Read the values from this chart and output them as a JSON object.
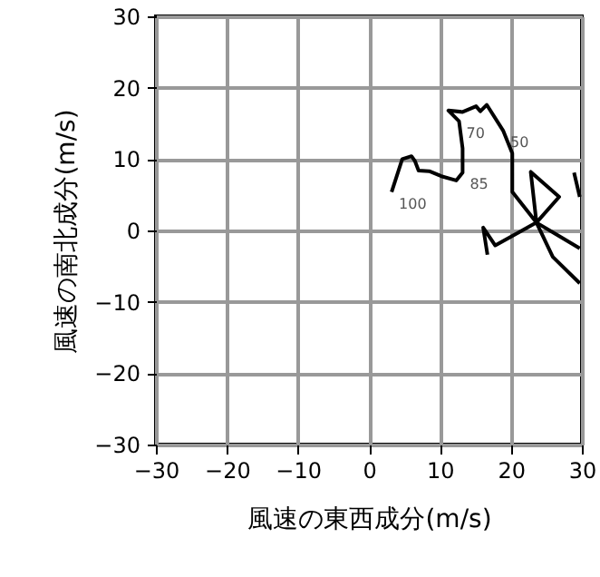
{
  "chart_data": {
    "type": "line",
    "xlabel": "風速の東西成分(m/s)",
    "ylabel": "風速の南北成分(m/s)",
    "xlim": [
      -30,
      30
    ],
    "ylim": [
      -30,
      30
    ],
    "xticks": [
      -30,
      -20,
      -10,
      0,
      10,
      20,
      30
    ],
    "yticks": [
      -30,
      -20,
      -10,
      0,
      10,
      20,
      30
    ],
    "grid": true,
    "marker": "none",
    "line_style": "solid",
    "series": [
      {
        "color": "#000000",
        "x": [
          3.2,
          4.7,
          6.0,
          6.5,
          7.0,
          8.5,
          10.2,
          12.3,
          13.2,
          13.2,
          12.7,
          11.2,
          13.2,
          15.1,
          15.7,
          16.6,
          18.9,
          20.2,
          20.2,
          23.6,
          26.8,
          22.8,
          23.6,
          25.9,
          29.7
        ],
        "values": [
          5.4,
          10.0,
          10.4,
          9.7,
          8.4,
          8.3,
          7.6,
          7.0,
          8.1,
          11.5,
          15.3,
          16.8,
          16.6,
          17.4,
          16.7,
          17.6,
          14.0,
          10.8,
          5.4,
          1.1,
          4.7,
          8.2,
          1.1,
          -3.7,
          -7.4
        ]
      },
      {
        "color": "#000000",
        "x": [
          16.7,
          16.1,
          17.8,
          23.6,
          29.7
        ],
        "values": [
          -3.4,
          0.4,
          -2.1,
          1.1,
          -2.5
        ]
      },
      {
        "color": "#000000",
        "x": [
          28.9,
          29.7
        ],
        "values": [
          8.1,
          4.7
        ]
      }
    ],
    "annotations": [
      {
        "text": "100",
        "x": 3.2,
        "y": 5.4
      },
      {
        "text": "85",
        "x": 13.2,
        "y": 8.1
      },
      {
        "text": "70",
        "x": 12.7,
        "y": 15.3
      },
      {
        "text": "50",
        "x": 18.9,
        "y": 14.0
      }
    ]
  }
}
